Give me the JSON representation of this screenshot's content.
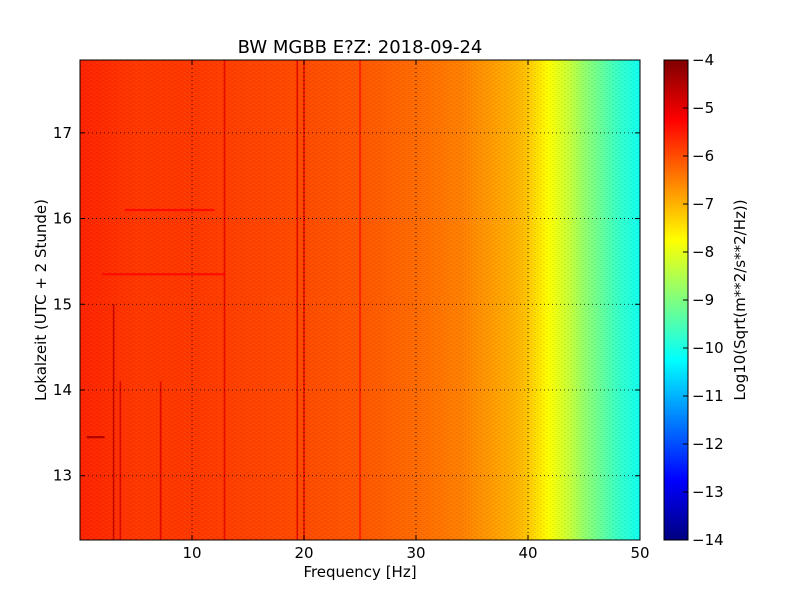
{
  "chart_data": {
    "type": "heatmap",
    "title": "BW MGBB E?Z: 2018-09-24",
    "xlabel": "Frequency [Hz]",
    "ylabel": "Lokalzeit (UTC + 2 Stunde)",
    "xlim": [
      0,
      50
    ],
    "ylim": [
      17.85,
      12.25
    ],
    "x_ticks": [
      10,
      20,
      30,
      40,
      50
    ],
    "y_ticks": [
      13,
      14,
      15,
      16,
      17
    ],
    "grid": true,
    "colorbar": {
      "label": "Log10(Sqrt(m**2/s**2/Hz))",
      "range": [
        -14,
        -4
      ],
      "ticks": [
        -4,
        -5,
        -6,
        -7,
        -8,
        -9,
        -10,
        -11,
        -12,
        -13,
        -14
      ],
      "colormap": [
        "#00007f",
        "#0000ff",
        "#007fff",
        "#00ffff",
        "#7fff7f",
        "#ffff00",
        "#ff7f00",
        "#ff0000",
        "#7f0000"
      ]
    },
    "level_profile": {
      "frequency_hz": [
        0,
        5,
        10,
        15,
        20,
        25,
        30,
        34,
        37,
        39,
        40,
        41,
        42,
        43,
        44,
        45,
        46,
        47,
        48,
        49,
        50
      ],
      "log10_amplitude": [
        -5.6,
        -5.8,
        -5.8,
        -5.9,
        -6.0,
        -6.1,
        -6.3,
        -6.5,
        -6.8,
        -7.0,
        -7.2,
        -7.5,
        -7.8,
        -8.1,
        -8.4,
        -8.8,
        -9.1,
        -9.4,
        -9.7,
        -9.9,
        -10.1
      ]
    },
    "line_features": [
      {
        "kind": "vertical",
        "frequency_hz": 3.0,
        "time_range": [
          12.25,
          15.0
        ],
        "log10_amplitude": -4.6
      },
      {
        "kind": "vertical",
        "frequency_hz": 3.6,
        "time_range": [
          12.25,
          14.1
        ],
        "log10_amplitude": -4.8
      },
      {
        "kind": "vertical",
        "frequency_hz": 7.2,
        "time_range": [
          12.25,
          14.1
        ],
        "log10_amplitude": -4.9
      },
      {
        "kind": "vertical",
        "frequency_hz": 12.9,
        "time_range": [
          12.25,
          17.85
        ],
        "log10_amplitude": -5.0
      },
      {
        "kind": "vertical",
        "frequency_hz": 19.4,
        "time_range": [
          12.25,
          17.85
        ],
        "log10_amplitude": -4.9
      },
      {
        "kind": "vertical",
        "frequency_hz": 20.0,
        "time_range": [
          12.25,
          17.85
        ],
        "log10_amplitude": -5.1
      },
      {
        "kind": "vertical",
        "frequency_hz": 25.0,
        "time_range": [
          12.25,
          17.85
        ],
        "log10_amplitude": -5.4
      },
      {
        "kind": "horizontal",
        "time": 13.45,
        "frequency_range": [
          0.6,
          2.2
        ],
        "log10_amplitude": -4.4
      },
      {
        "kind": "horizontal",
        "time": 15.35,
        "frequency_range": [
          2,
          13
        ],
        "log10_amplitude": -5.3
      },
      {
        "kind": "horizontal",
        "time": 16.1,
        "frequency_range": [
          4,
          12
        ],
        "log10_amplitude": -5.3
      }
    ]
  }
}
